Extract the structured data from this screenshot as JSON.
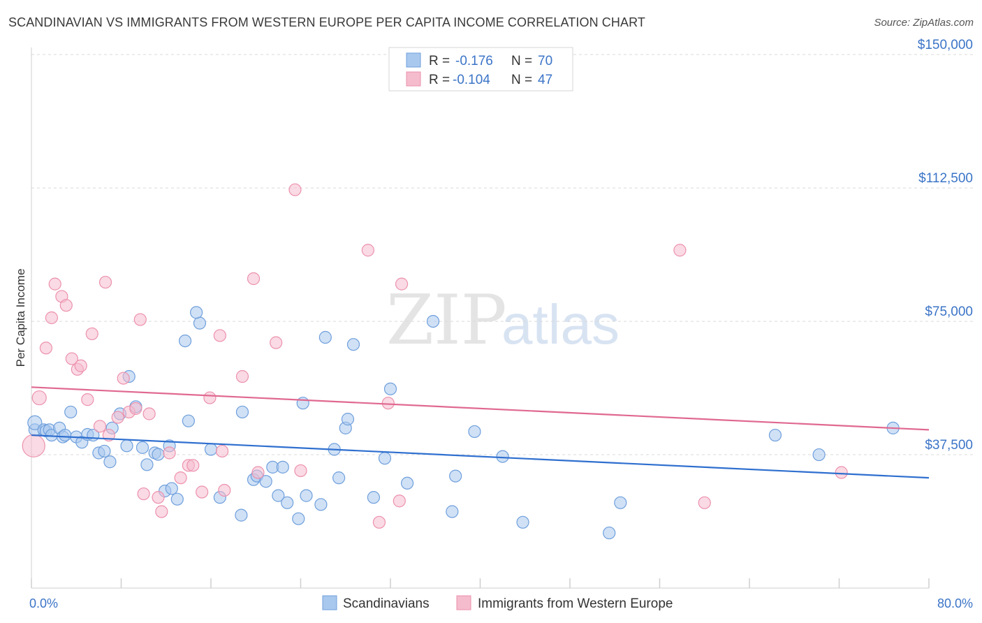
{
  "title": "SCANDINAVIAN VS IMMIGRANTS FROM WESTERN EUROPE PER CAPITA INCOME CORRELATION CHART",
  "source": "Source: ZipAtlas.com",
  "watermark": {
    "zip": "ZIP",
    "atlas": "atlas"
  },
  "colors": {
    "blue_fill": "#a9c8ee",
    "blue_stroke": "#6f9fdc",
    "blue_line": "#2f6fcf",
    "pink_fill": "#f5bccd",
    "pink_stroke": "#ec91ad",
    "pink_line": "#e06990",
    "axis_text": "#3b74c7",
    "grid": "#d9d9d9"
  },
  "legend_top": {
    "entries": [
      {
        "r_label": "R =",
        "r_value": "-0.176",
        "n_label": "N =",
        "n_value": "70"
      },
      {
        "r_label": "R =",
        "r_value": "-0.104",
        "n_label": "N =",
        "n_value": "47"
      }
    ]
  },
  "chart_data": {
    "type": "scatter",
    "xlabel": "",
    "ylabel": "Per Capita Income",
    "xlim": [
      0,
      80
    ],
    "ylim": [
      0,
      152000
    ],
    "x_tick_labels": {
      "left": "0.0%",
      "right": "80.0%"
    },
    "y_ticks": [
      {
        "value": 37500,
        "label": "$37,500"
      },
      {
        "value": 75000,
        "label": "$75,000"
      },
      {
        "value": 112500,
        "label": "$112,500"
      },
      {
        "value": 150000,
        "label": "$150,000"
      }
    ],
    "grid": "horizontal dashed",
    "legend_position": "bottom-center",
    "series": [
      {
        "name": "Scandinavians",
        "trend": {
          "x": [
            0,
            80
          ],
          "y": [
            43000,
            31000
          ]
        },
        "points": [
          [
            0.3,
            44500
          ],
          [
            0.3,
            46500
          ],
          [
            1.1,
            44500
          ],
          [
            1.3,
            44200
          ],
          [
            1.6,
            44500
          ],
          [
            1.8,
            43000
          ],
          [
            2.5,
            45000
          ],
          [
            2.8,
            42500
          ],
          [
            3.0,
            43000
          ],
          [
            3.5,
            49500
          ],
          [
            4.0,
            42500
          ],
          [
            4.5,
            41000
          ],
          [
            5.0,
            43200
          ],
          [
            5.5,
            43000
          ],
          [
            6.0,
            38000
          ],
          [
            6.5,
            38500
          ],
          [
            7.0,
            35500
          ],
          [
            7.2,
            45000
          ],
          [
            7.9,
            49000
          ],
          [
            8.5,
            40000
          ],
          [
            8.7,
            59500
          ],
          [
            9.3,
            51000
          ],
          [
            9.9,
            39500
          ],
          [
            10.3,
            34700
          ],
          [
            11.0,
            38000
          ],
          [
            11.3,
            37600
          ],
          [
            11.9,
            27300
          ],
          [
            12.3,
            40000
          ],
          [
            12.5,
            28000
          ],
          [
            13.0,
            25000
          ],
          [
            13.7,
            69500
          ],
          [
            14.0,
            47000
          ],
          [
            15.0,
            74500
          ],
          [
            14.7,
            77500
          ],
          [
            16.0,
            39000
          ],
          [
            16.8,
            25500
          ],
          [
            18.7,
            20500
          ],
          [
            18.8,
            49500
          ],
          [
            19.8,
            30500
          ],
          [
            20.1,
            31500
          ],
          [
            20.9,
            30000
          ],
          [
            21.5,
            34000
          ],
          [
            22.0,
            26000
          ],
          [
            22.4,
            34000
          ],
          [
            22.8,
            24000
          ],
          [
            23.8,
            19500
          ],
          [
            24.2,
            52000
          ],
          [
            24.5,
            26000
          ],
          [
            25.8,
            23500
          ],
          [
            26.2,
            70500
          ],
          [
            27.0,
            39000
          ],
          [
            27.4,
            31000
          ],
          [
            28.0,
            45000
          ],
          [
            28.2,
            47500
          ],
          [
            28.7,
            68500
          ],
          [
            30.5,
            25500
          ],
          [
            31.5,
            36500
          ],
          [
            32.0,
            56000
          ],
          [
            33.5,
            29500
          ],
          [
            35.8,
            75000
          ],
          [
            37.5,
            21500
          ],
          [
            37.8,
            31500
          ],
          [
            39.5,
            44000
          ],
          [
            42.0,
            37000
          ],
          [
            43.8,
            18500
          ],
          [
            51.5,
            15500
          ],
          [
            52.5,
            24000
          ],
          [
            66.3,
            43000
          ],
          [
            70.2,
            37500
          ],
          [
            76.8,
            45000
          ]
        ]
      },
      {
        "name": "Immigrants from Western Europe",
        "trend": {
          "x": [
            0,
            80
          ],
          "y": [
            56500,
            44500
          ]
        },
        "points": [
          [
            0.2,
            40000
          ],
          [
            0.7,
            53500
          ],
          [
            1.3,
            67500
          ],
          [
            1.8,
            76000
          ],
          [
            2.1,
            85500
          ],
          [
            2.7,
            82000
          ],
          [
            3.1,
            79500
          ],
          [
            3.6,
            64500
          ],
          [
            4.1,
            61500
          ],
          [
            4.4,
            62500
          ],
          [
            5.0,
            53000
          ],
          [
            5.4,
            71500
          ],
          [
            6.1,
            45500
          ],
          [
            6.6,
            86000
          ],
          [
            6.9,
            43000
          ],
          [
            7.7,
            48000
          ],
          [
            8.2,
            59000
          ],
          [
            8.7,
            49500
          ],
          [
            9.3,
            50500
          ],
          [
            9.7,
            75500
          ],
          [
            10.0,
            26500
          ],
          [
            10.5,
            49000
          ],
          [
            11.3,
            25500
          ],
          [
            11.6,
            21500
          ],
          [
            12.3,
            38000
          ],
          [
            13.3,
            31000
          ],
          [
            14.0,
            34500
          ],
          [
            14.4,
            34500
          ],
          [
            15.2,
            27000
          ],
          [
            15.9,
            53500
          ],
          [
            16.8,
            71000
          ],
          [
            17.0,
            38500
          ],
          [
            17.2,
            27500
          ],
          [
            18.8,
            59500
          ],
          [
            19.8,
            87000
          ],
          [
            20.2,
            32500
          ],
          [
            21.8,
            69000
          ],
          [
            23.5,
            112000
          ],
          [
            24.0,
            33000
          ],
          [
            30.0,
            95000
          ],
          [
            31.0,
            18500
          ],
          [
            31.8,
            52000
          ],
          [
            32.8,
            24500
          ],
          [
            33.0,
            85500
          ],
          [
            57.8,
            95000
          ],
          [
            60.0,
            24000
          ],
          [
            72.2,
            32500
          ]
        ]
      }
    ]
  }
}
